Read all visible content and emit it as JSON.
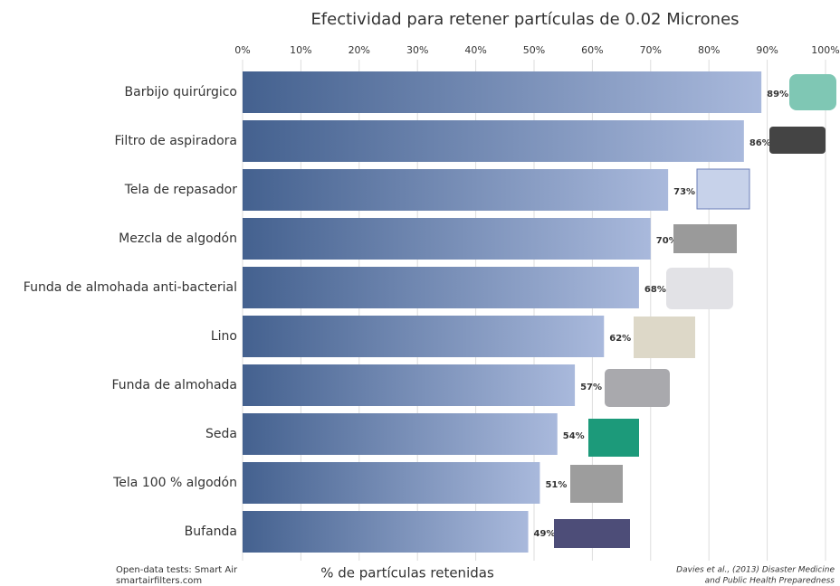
{
  "chart_data": {
    "type": "bar",
    "orientation": "horizontal",
    "title": "Efectividad para retener partículas de 0.02 Micrones",
    "x_label": "% de partículas retenidas",
    "categories": [
      "Barbijo quirúrgico",
      "Filtro de aspiradora",
      "Tela de repasador",
      "Mezcla de algodón",
      "Funda de almohada anti-bacterial",
      "Lino",
      "Funda de almohada",
      "Seda",
      "Tela 100 % algodón",
      "Bufanda"
    ],
    "values": [
      89,
      86,
      73,
      70,
      68,
      62,
      57,
      54,
      51,
      49
    ],
    "value_labels": [
      "89%",
      "86%",
      "73%",
      "70%",
      "68%",
      "62%",
      "57%",
      "54%",
      "51%",
      "49%"
    ],
    "color_start": "#44618f",
    "color_end": "#a9b9dc",
    "xlim": [
      0,
      100
    ],
    "xticks": [
      {
        "value": 0,
        "label": "0%"
      },
      {
        "value": 10,
        "label": "10%"
      },
      {
        "value": 20,
        "label": "20%"
      },
      {
        "value": 30,
        "label": "30%"
      },
      {
        "value": 40,
        "label": "40%"
      },
      {
        "value": 50,
        "label": "50%"
      },
      {
        "value": 60,
        "label": "60%"
      },
      {
        "value": 70,
        "label": "70%"
      },
      {
        "value": 80,
        "label": "80%"
      },
      {
        "value": 90,
        "label": "90%"
      },
      {
        "value": 100,
        "label": "100%"
      }
    ],
    "grid": true,
    "source_left": [
      "Open-data tests: Smart Air",
      "smartairfilters.com"
    ],
    "source_right": [
      "Davies et al., (2013) Disaster Medicine",
      "and Public Health Preparedness"
    ]
  }
}
